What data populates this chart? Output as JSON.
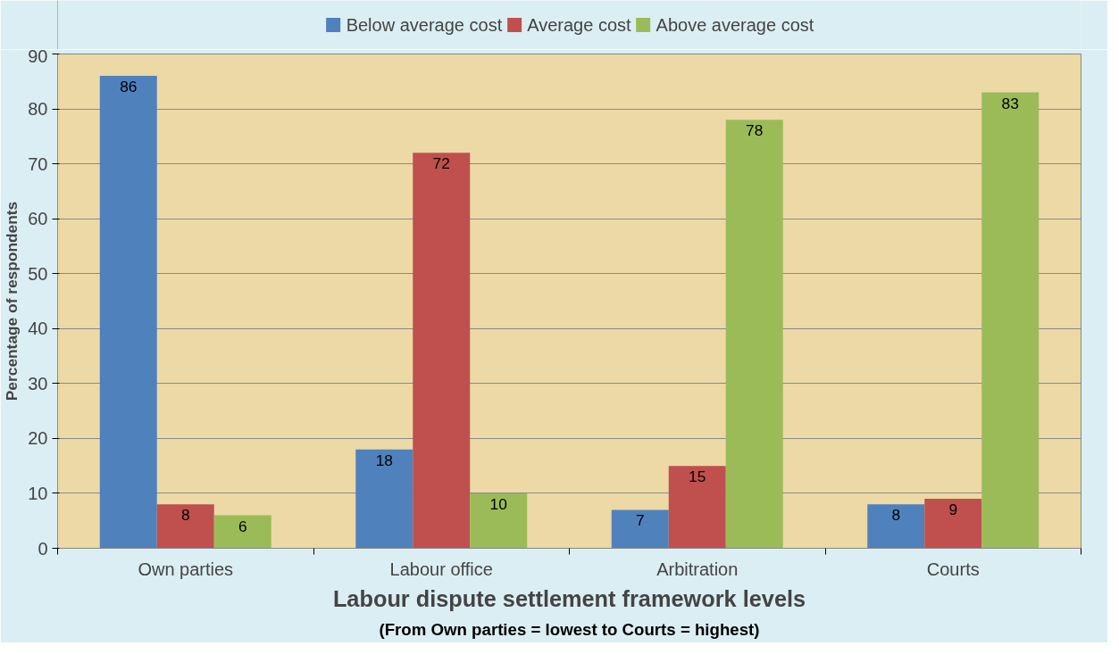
{
  "chart_data": {
    "type": "bar",
    "xlabel": "Labour dispute settlement framework levels",
    "ylabel": "Percentage of respondents",
    "categories": [
      "Own parties",
      "Labour office",
      "Arbitration",
      "Courts"
    ],
    "series": [
      {
        "name": "Below average cost",
        "color": "#4f81bd",
        "values": [
          86,
          18,
          7,
          8
        ]
      },
      {
        "name": "Average cost",
        "color": "#c0504d",
        "values": [
          8,
          72,
          15,
          9
        ]
      },
      {
        "name": "Above average cost",
        "color": "#9bbb59",
        "values": [
          6,
          10,
          78,
          83
        ]
      }
    ],
    "ylim": [
      0,
      90
    ],
    "yticks": [
      0,
      10,
      20,
      30,
      40,
      50,
      60,
      70,
      80,
      90
    ],
    "grid": "y",
    "legend": "top",
    "data_labels": true,
    "annotations": [
      "(From Own parties = lowest to Courts = highest)"
    ]
  }
}
